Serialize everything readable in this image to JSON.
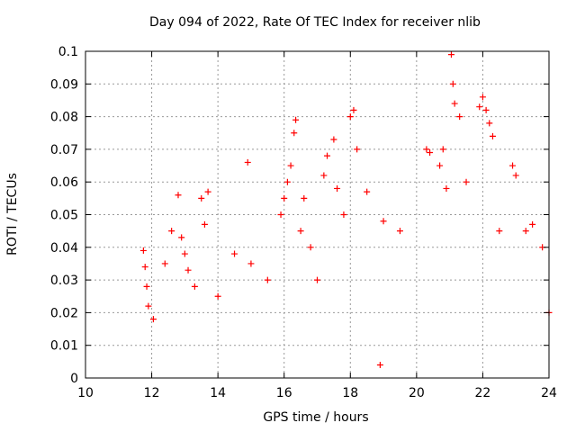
{
  "chart_data": {
    "type": "scatter",
    "title": "Day 094 of 2022, Rate Of TEC Index for receiver nlib",
    "xlabel": "GPS time / hours",
    "ylabel": "ROTI / TECUs",
    "xlim": [
      10,
      24
    ],
    "ylim": [
      0,
      0.1
    ],
    "x_ticks": [
      "10",
      "12",
      "14",
      "16",
      "18",
      "20",
      "22",
      "24"
    ],
    "y_ticks": [
      "0",
      "0.01",
      "0.02",
      "0.03",
      "0.04",
      "0.05",
      "0.06",
      "0.07",
      "0.08",
      "0.09",
      "0.1"
    ],
    "grid": true,
    "marker": "+",
    "color": "#ff0000",
    "series": [
      {
        "values": [
          [
            11.75,
            0.039
          ],
          [
            11.8,
            0.034
          ],
          [
            11.85,
            0.028
          ],
          [
            11.9,
            0.022
          ],
          [
            12.05,
            0.018
          ],
          [
            12.4,
            0.035
          ],
          [
            12.6,
            0.045
          ],
          [
            12.8,
            0.056
          ],
          [
            12.9,
            0.043
          ],
          [
            13.0,
            0.038
          ],
          [
            13.1,
            0.033
          ],
          [
            13.3,
            0.028
          ],
          [
            13.5,
            0.055
          ],
          [
            13.6,
            0.047
          ],
          [
            13.7,
            0.057
          ],
          [
            14.0,
            0.025
          ],
          [
            14.5,
            0.038
          ],
          [
            14.9,
            0.066
          ],
          [
            15.0,
            0.035
          ],
          [
            15.5,
            0.03
          ],
          [
            15.9,
            0.05
          ],
          [
            16.0,
            0.055
          ],
          [
            16.1,
            0.06
          ],
          [
            16.2,
            0.065
          ],
          [
            16.3,
            0.075
          ],
          [
            16.35,
            0.079
          ],
          [
            16.5,
            0.045
          ],
          [
            16.6,
            0.055
          ],
          [
            16.8,
            0.04
          ],
          [
            17.0,
            0.03
          ],
          [
            17.2,
            0.062
          ],
          [
            17.3,
            0.068
          ],
          [
            17.5,
            0.073
          ],
          [
            17.6,
            0.058
          ],
          [
            17.8,
            0.05
          ],
          [
            18.0,
            0.08
          ],
          [
            18.1,
            0.082
          ],
          [
            18.2,
            0.07
          ],
          [
            18.5,
            0.057
          ],
          [
            18.9,
            0.004
          ],
          [
            19.0,
            0.048
          ],
          [
            19.5,
            0.045
          ],
          [
            20.3,
            0.07
          ],
          [
            20.4,
            0.069
          ],
          [
            20.7,
            0.065
          ],
          [
            20.8,
            0.07
          ],
          [
            20.9,
            0.058
          ],
          [
            21.05,
            0.099
          ],
          [
            21.1,
            0.09
          ],
          [
            21.15,
            0.084
          ],
          [
            21.3,
            0.08
          ],
          [
            21.5,
            0.06
          ],
          [
            21.9,
            0.083
          ],
          [
            22.0,
            0.086
          ],
          [
            22.1,
            0.082
          ],
          [
            22.2,
            0.078
          ],
          [
            22.3,
            0.074
          ],
          [
            22.5,
            0.045
          ],
          [
            22.9,
            0.065
          ],
          [
            23.0,
            0.062
          ],
          [
            23.3,
            0.045
          ],
          [
            23.5,
            0.047
          ],
          [
            23.8,
            0.04
          ],
          [
            24.0,
            0.02
          ]
        ]
      }
    ]
  }
}
